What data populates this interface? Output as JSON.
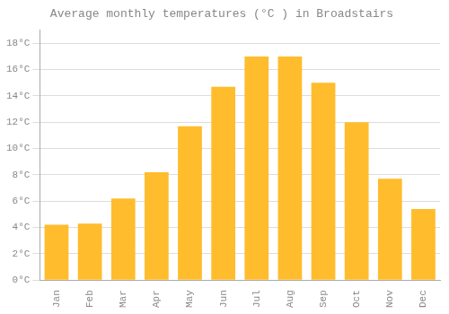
{
  "chart_data": {
    "type": "bar",
    "title": "Average monthly temperatures (°C ) in Broadstairs",
    "categories": [
      "Jan",
      "Feb",
      "Mar",
      "Apr",
      "May",
      "Jun",
      "Jul",
      "Aug",
      "Sep",
      "Oct",
      "Nov",
      "Dec"
    ],
    "values": [
      4.2,
      4.3,
      6.2,
      8.2,
      11.7,
      14.7,
      17.0,
      17.0,
      15.0,
      12.0,
      7.7,
      5.4
    ],
    "color": "#FFBC2C",
    "ylim": [
      0,
      19
    ],
    "yticks": [
      {
        "value": 0,
        "label": "0°C"
      },
      {
        "value": 2,
        "label": "2°C"
      },
      {
        "value": 4,
        "label": "4°C"
      },
      {
        "value": 6,
        "label": "6°C"
      },
      {
        "value": 8,
        "label": "8°C"
      },
      {
        "value": 10,
        "label": "10°C"
      },
      {
        "value": 12,
        "label": "12°C"
      },
      {
        "value": 14,
        "label": "14°C"
      },
      {
        "value": 16,
        "label": "16°C"
      },
      {
        "value": 18,
        "label": "18°C"
      }
    ],
    "grid": true
  }
}
